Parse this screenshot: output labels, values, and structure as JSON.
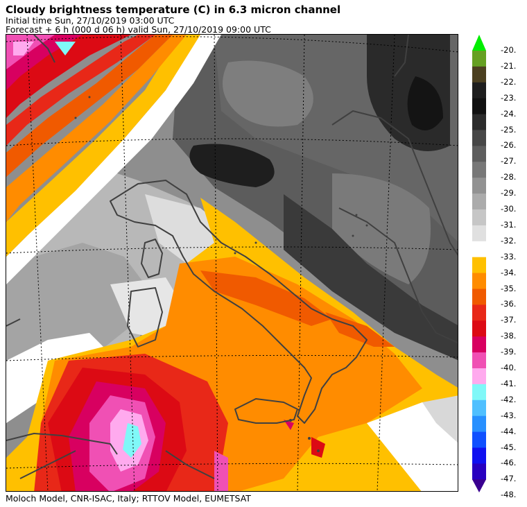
{
  "header": {
    "title": "Cloudy brightness temperature (C) in    6.3 micron channel",
    "initial_time": "Initial time  Sun, 27/10/2019  03:00 UTC",
    "forecast": "Forecast  +   6 h  (000 d 06 h)  valid Sun, 27/10/2019 09:00 UTC"
  },
  "footer": {
    "credits": "Moloch Model, CNR-ISAC, Italy; RTTOV Model, EUMETSAT"
  },
  "map": {
    "variable": "cloudy brightness temperature",
    "units": "C",
    "channel": "6.3 micron",
    "coastline_color": "#404040",
    "gridline_style": "dotted"
  },
  "colorbar": {
    "ticks": [
      "-20.",
      "-21.",
      "-22.",
      "-23.",
      "-24.",
      "-25.",
      "-26.",
      "-27.",
      "-28.",
      "-29.",
      "-30.",
      "-31.",
      "-32.",
      "-33.",
      "-34.",
      "-35.",
      "-36.",
      "-37.",
      "-38.",
      "-39.",
      "-40.",
      "-41.",
      "-42.",
      "-43.",
      "-44.",
      "-45.",
      "-46.",
      "-47.",
      "-48."
    ],
    "colors": [
      "#00ee00",
      "#66a022",
      "#4c4020",
      "#1e1e1e",
      "#111111",
      "#2c2c2c",
      "#474747",
      "#5e5e5e",
      "#787878",
      "#929292",
      "#ababab",
      "#c6c6c6",
      "#e0e0e0",
      "#ffffff",
      "#ffc000",
      "#ff8c00",
      "#f05a00",
      "#e82818",
      "#dc0a14",
      "#d80060",
      "#f050b4",
      "#ffaaee",
      "#80f8f8",
      "#50c0ff",
      "#2890ff",
      "#1050ff",
      "#1010f0",
      "#2800c0",
      "#3a0090"
    ]
  }
}
